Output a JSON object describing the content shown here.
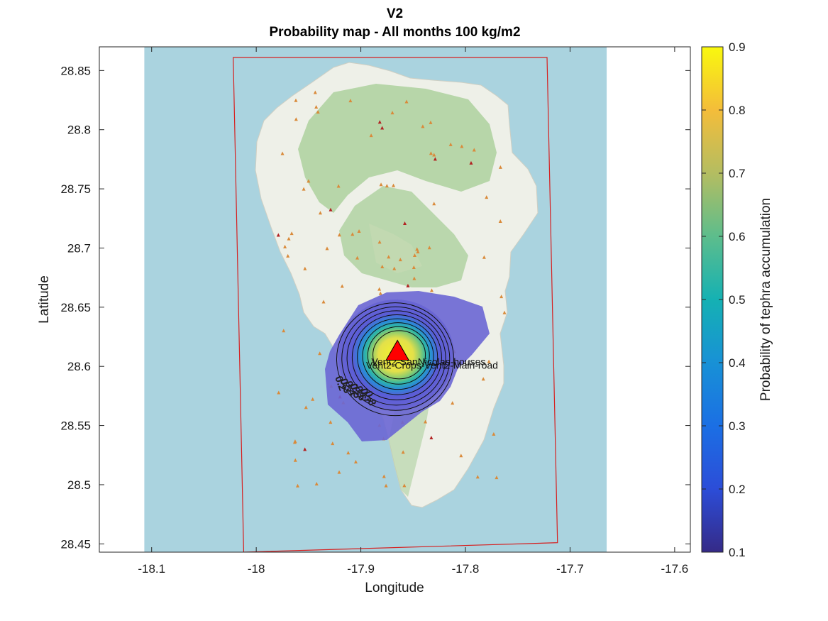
{
  "chart_data": {
    "type": "heatmap",
    "title": "V2",
    "subtitle": "Probability map - All months 100 kg/m2",
    "xlabel": "Longitude",
    "ylabel": "Latitude",
    "xlim": [
      -18.15,
      -17.585
    ],
    "ylim": [
      28.443,
      28.87
    ],
    "xticks": [
      -18.1,
      -18,
      -17.9,
      -17.8,
      -17.7,
      -17.6
    ],
    "xtick_labels": [
      "-18.1",
      "-18",
      "-17.9",
      "-17.8",
      "-17.7",
      "-17.6"
    ],
    "yticks": [
      28.45,
      28.5,
      28.55,
      28.6,
      28.65,
      28.7,
      28.75,
      28.8,
      28.85
    ],
    "ytick_labels": [
      "28.45",
      "28.5",
      "28.55",
      "28.6",
      "28.65",
      "28.7",
      "28.75",
      "28.8",
      "28.85"
    ],
    "grid": false,
    "colorbar": {
      "label": "Probability of tephra accumulation",
      "min": 0.1,
      "max": 0.9,
      "ticks": [
        0.1,
        0.2,
        0.3,
        0.4,
        0.5,
        0.6,
        0.7,
        0.8,
        0.9
      ],
      "tick_labels": [
        "0.1",
        "0.2",
        "0.3",
        "0.4",
        "0.5",
        "0.6",
        "0.7",
        "0.8",
        "0.9"
      ],
      "colormap": "parula"
    },
    "vent": {
      "lon": -17.865,
      "lat": 28.613,
      "marker": "triangle",
      "color": "#ff0000"
    },
    "point_labels": [
      {
        "text": "Vent2-SanNicolas-houses",
        "lon": -17.89,
        "lat": 28.601
      },
      {
        "text": "Vent2-Crops-Vent2-Main-road",
        "lon": -17.895,
        "lat": 28.598
      }
    ],
    "probability_field": {
      "center": [
        -17.865,
        28.611
      ],
      "peak": 0.9,
      "extent_lon": [
        -17.935,
        -17.79
      ],
      "extent_lat": [
        28.553,
        28.66
      ]
    },
    "contour_levels": [
      0.2,
      0.3,
      0.4,
      0.5,
      0.6,
      0.7,
      0.8,
      0.9
    ],
    "contour_labels": [
      "0.2",
      "0.3",
      "0.4",
      "0.5",
      "0.6",
      "0.7",
      "0.8"
    ],
    "domain_box_corners": [
      [
        -18.022,
        28.861
      ],
      [
        -17.722,
        28.861
      ],
      [
        -17.712,
        28.451
      ],
      [
        -18.012,
        28.443
      ]
    ],
    "basemap_extent": {
      "lon": [
        -18.107,
        -17.665
      ]
    },
    "colors": {
      "sea": "#aad3df",
      "land": "#eef0e8",
      "forest": "#add19e",
      "domain_box": "#d62020",
      "vent": "#ff0000"
    }
  }
}
